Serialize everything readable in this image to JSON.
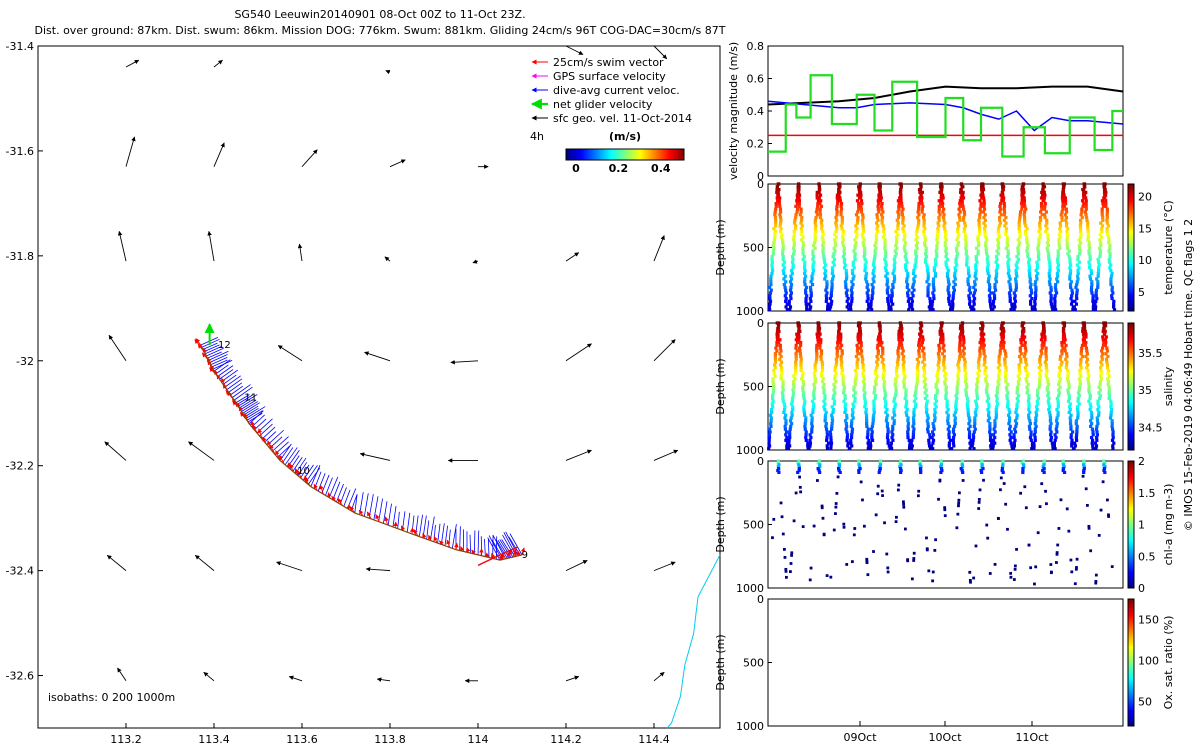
{
  "header": {
    "line1": "SG540 Leeuwin20140901 08-Oct 00Z to 11-Oct 23Z.",
    "line2": "Dist. over ground: 87km. Dist. swum: 86km. Mission DOG: 776km. Swum: 881km. Gliding 24cm/s 96T COG-DAC=30cm/s 87T"
  },
  "copyright": "© IMOS 15-Feb-2019 04:06:49 Hobart time. QC flags 1 2",
  "colors": {
    "swim": "#ff0000",
    "gps": "#ff00ff",
    "dac": "#0000ff",
    "net": "#00dd00",
    "geo": "#000000",
    "coast": "#00ccee"
  },
  "chart_data": [
    {
      "type": "scatter",
      "name": "map",
      "xlim": [
        113.0,
        114.55
      ],
      "ylim": [
        -32.7,
        -31.4
      ],
      "xticks": [
        113.2,
        113.4,
        113.6,
        113.8,
        114,
        114.2,
        114.4
      ],
      "xtick_labels": [
        "113.2",
        "113.4",
        "113.6",
        "113.8",
        "114",
        "114.2",
        "114.4"
      ],
      "yticks": [
        -31.4,
        -31.6,
        -31.8,
        -32,
        -32.2,
        -32.4,
        -32.6
      ],
      "ytick_labels": [
        "-31.4",
        "-31.6",
        "-31.8",
        "-32",
        "-32.2",
        "-32.4",
        "-32.6"
      ],
      "legend_position": "top-right",
      "legend": [
        {
          "label": "25cm/s swim vector",
          "color": "#ff0000"
        },
        {
          "label": "GPS surface velocity",
          "color": "#ff00ff"
        },
        {
          "label": "dive-avg current veloc.",
          "color": "#0000ff"
        },
        {
          "label": "net glider velocity",
          "color": "#00dd00"
        },
        {
          "label": "sfc geo. vel. 11-Oct-2014",
          "color": "#000000"
        }
      ],
      "colorbar": {
        "title": "(m/s)",
        "prefix": "4h",
        "ticks": [
          0,
          0.2,
          0.4
        ],
        "tick_labels": [
          "0",
          "0.2",
          "0.4"
        ],
        "range": [
          0,
          0.5
        ]
      },
      "isobaths_label": "isobaths: 0   200   1000m",
      "track": {
        "lon": [
          113.37,
          113.4,
          113.45,
          113.48,
          113.55,
          113.62,
          113.72,
          113.85,
          113.95,
          114.05,
          114.1
        ],
        "lat": [
          -31.97,
          -32.02,
          -32.08,
          -32.12,
          -32.19,
          -32.24,
          -32.29,
          -32.33,
          -32.36,
          -32.38,
          -32.37
        ]
      },
      "day_labels": [
        {
          "text": "12",
          "lon": 113.4,
          "lat": -31.97
        },
        {
          "text": "11",
          "lon": 113.46,
          "lat": -32.07
        },
        {
          "text": "10",
          "lon": 113.58,
          "lat": -32.21
        },
        {
          "text": "9",
          "lon": 114.09,
          "lat": -32.37
        }
      ],
      "geo_vectors": [
        {
          "lon": 113.2,
          "lat": -31.44,
          "u": 0.15,
          "v": 0.08
        },
        {
          "lon": 113.4,
          "lat": -31.44,
          "u": 0.1,
          "v": 0.08
        },
        {
          "lon": 113.8,
          "lat": -31.45,
          "u": -0.05,
          "v": 0.02
        },
        {
          "lon": 114.2,
          "lat": -31.4,
          "u": 0.2,
          "v": -0.1
        },
        {
          "lon": 114.4,
          "lat": -31.4,
          "u": 0.15,
          "v": -0.15
        },
        {
          "lon": 113.2,
          "lat": -31.63,
          "u": 0.1,
          "v": 0.35
        },
        {
          "lon": 113.4,
          "lat": -31.63,
          "u": 0.12,
          "v": 0.28
        },
        {
          "lon": 113.6,
          "lat": -31.63,
          "u": 0.18,
          "v": 0.2
        },
        {
          "lon": 113.8,
          "lat": -31.63,
          "u": 0.18,
          "v": 0.08
        },
        {
          "lon": 114.0,
          "lat": -31.63,
          "u": 0.12,
          "v": 0.0
        },
        {
          "lon": 113.2,
          "lat": -31.81,
          "u": -0.08,
          "v": 0.35
        },
        {
          "lon": 113.4,
          "lat": -31.81,
          "u": -0.06,
          "v": 0.35
        },
        {
          "lon": 113.6,
          "lat": -31.81,
          "u": -0.03,
          "v": 0.2
        },
        {
          "lon": 113.8,
          "lat": -31.81,
          "u": -0.06,
          "v": 0.05
        },
        {
          "lon": 114.0,
          "lat": -31.81,
          "u": -0.06,
          "v": -0.02
        },
        {
          "lon": 114.2,
          "lat": -31.81,
          "u": 0.15,
          "v": 0.1
        },
        {
          "lon": 114.4,
          "lat": -31.81,
          "u": 0.12,
          "v": 0.3
        },
        {
          "lon": 113.2,
          "lat": -32.0,
          "u": -0.2,
          "v": 0.3
        },
        {
          "lon": 113.6,
          "lat": -32.0,
          "u": -0.28,
          "v": 0.18
        },
        {
          "lon": 113.8,
          "lat": -32.0,
          "u": -0.3,
          "v": 0.1
        },
        {
          "lon": 114.0,
          "lat": -32.0,
          "u": -0.32,
          "v": -0.02
        },
        {
          "lon": 114.2,
          "lat": -32.0,
          "u": 0.3,
          "v": 0.2
        },
        {
          "lon": 114.4,
          "lat": -32.0,
          "u": 0.25,
          "v": 0.25
        },
        {
          "lon": 113.2,
          "lat": -32.19,
          "u": -0.25,
          "v": 0.22
        },
        {
          "lon": 113.4,
          "lat": -32.19,
          "u": -0.3,
          "v": 0.22
        },
        {
          "lon": 113.8,
          "lat": -32.19,
          "u": -0.35,
          "v": 0.08
        },
        {
          "lon": 114.0,
          "lat": -32.19,
          "u": -0.35,
          "v": 0.0
        },
        {
          "lon": 114.2,
          "lat": -32.19,
          "u": 0.3,
          "v": 0.12
        },
        {
          "lon": 114.4,
          "lat": -32.19,
          "u": 0.28,
          "v": 0.12
        },
        {
          "lon": 113.2,
          "lat": -32.4,
          "u": -0.22,
          "v": 0.18
        },
        {
          "lon": 113.4,
          "lat": -32.4,
          "u": -0.22,
          "v": 0.18
        },
        {
          "lon": 113.6,
          "lat": -32.4,
          "u": -0.3,
          "v": 0.1
        },
        {
          "lon": 113.8,
          "lat": -32.4,
          "u": -0.28,
          "v": 0.02
        },
        {
          "lon": 114.2,
          "lat": -32.4,
          "u": 0.25,
          "v": 0.12
        },
        {
          "lon": 114.4,
          "lat": -32.4,
          "u": 0.25,
          "v": 0.1
        },
        {
          "lon": 113.2,
          "lat": -32.61,
          "u": -0.1,
          "v": 0.15
        },
        {
          "lon": 113.4,
          "lat": -32.61,
          "u": -0.12,
          "v": 0.1
        },
        {
          "lon": 113.6,
          "lat": -32.61,
          "u": -0.15,
          "v": 0.05
        },
        {
          "lon": 113.8,
          "lat": -32.61,
          "u": -0.15,
          "v": 0.02
        },
        {
          "lon": 114.0,
          "lat": -32.61,
          "u": -0.15,
          "v": 0.0
        },
        {
          "lon": 114.2,
          "lat": -32.61,
          "u": 0.15,
          "v": 0.05
        },
        {
          "lon": 114.4,
          "lat": -32.61,
          "u": 0.12,
          "v": 0.1
        }
      ]
    },
    {
      "type": "line",
      "name": "velocity",
      "ylabel": "velocity magnitude (m/s)",
      "ylim": [
        0,
        0.8
      ],
      "yticks": [
        0,
        0.2,
        0.4,
        0.6,
        0.8
      ],
      "ytick_labels": [
        "0",
        "0.2",
        "0.4",
        "0.6",
        "0.8"
      ],
      "xlim": [
        0,
        1
      ],
      "series": [
        {
          "color": "#000000",
          "x": [
            0,
            0.1,
            0.2,
            0.3,
            0.4,
            0.5,
            0.6,
            0.7,
            0.8,
            0.9,
            1.0
          ],
          "y": [
            0.44,
            0.45,
            0.46,
            0.48,
            0.52,
            0.55,
            0.54,
            0.54,
            0.55,
            0.55,
            0.52
          ]
        },
        {
          "color": "#0000ff",
          "x": [
            0,
            0.1,
            0.2,
            0.25,
            0.3,
            0.4,
            0.5,
            0.55,
            0.6,
            0.65,
            0.7,
            0.75,
            0.8,
            0.85,
            0.9,
            1.0
          ],
          "y": [
            0.46,
            0.44,
            0.42,
            0.42,
            0.44,
            0.45,
            0.44,
            0.42,
            0.38,
            0.35,
            0.4,
            0.28,
            0.36,
            0.34,
            0.34,
            0.32
          ]
        },
        {
          "color": "#ff0000",
          "x": [
            0,
            1.0
          ],
          "y": [
            0.25,
            0.25
          ]
        },
        {
          "color": "#22dd22",
          "x": [
            0,
            0.05,
            0.05,
            0.08,
            0.08,
            0.12,
            0.12,
            0.18,
            0.18,
            0.25,
            0.25,
            0.3,
            0.3,
            0.35,
            0.35,
            0.42,
            0.42,
            0.5,
            0.5,
            0.55,
            0.55,
            0.6,
            0.6,
            0.66,
            0.66,
            0.72,
            0.72,
            0.78,
            0.78,
            0.85,
            0.85,
            0.92,
            0.92,
            0.97,
            0.97,
            1.0
          ],
          "y": [
            0.15,
            0.15,
            0.44,
            0.44,
            0.36,
            0.36,
            0.62,
            0.62,
            0.32,
            0.32,
            0.5,
            0.5,
            0.28,
            0.28,
            0.58,
            0.58,
            0.24,
            0.24,
            0.48,
            0.48,
            0.22,
            0.22,
            0.42,
            0.42,
            0.12,
            0.12,
            0.3,
            0.3,
            0.14,
            0.14,
            0.36,
            0.36,
            0.16,
            0.16,
            0.4,
            0.4
          ]
        }
      ]
    },
    {
      "type": "scatter",
      "name": "temperature",
      "ylabel": "Depth (m)",
      "clabel": "temperature (°C)",
      "ylim": [
        0,
        1000
      ],
      "yticks": [
        0,
        500,
        1000
      ],
      "ytick_labels": [
        "0",
        "500",
        "1000"
      ],
      "cticks": [
        5,
        10,
        15,
        20
      ],
      "ctick_labels": [
        "5",
        "10",
        "15",
        "20"
      ],
      "crange": [
        2,
        22
      ],
      "profiles": 17,
      "max_depth": 1000
    },
    {
      "type": "scatter",
      "name": "salinity",
      "ylabel": "Depth (m)",
      "clabel": "salinity",
      "ylim": [
        0,
        1000
      ],
      "yticks": [
        0,
        500,
        1000
      ],
      "ytick_labels": [
        "0",
        "500",
        "1000"
      ],
      "cticks": [
        34.5,
        35,
        35.5
      ],
      "ctick_labels": [
        "34.5",
        "35",
        "35.5"
      ],
      "crange": [
        34.2,
        35.9
      ],
      "profiles": 17,
      "max_depth": 1000
    },
    {
      "type": "scatter",
      "name": "chl",
      "ylabel": "Depth (m)",
      "clabel": "chl-a (mg m-3)",
      "ylim": [
        0,
        1000
      ],
      "yticks": [
        0,
        500,
        1000
      ],
      "ytick_labels": [
        "0",
        "500",
        "1000"
      ],
      "cticks": [
        0,
        0.5,
        1,
        1.5,
        2
      ],
      "ctick_labels": [
        "0",
        "0.5",
        "1",
        "1.5",
        "2"
      ],
      "crange": [
        0,
        2
      ],
      "profiles": 17
    },
    {
      "type": "scatter",
      "name": "oxygen",
      "ylabel": "Depth (m)",
      "clabel": "Ox. sat. ratio (%)",
      "ylim": [
        0,
        1000
      ],
      "yticks": [
        0,
        500,
        1000
      ],
      "ytick_labels": [
        "0",
        "500",
        "1000"
      ],
      "cticks": [
        50,
        100,
        150
      ],
      "ctick_labels": [
        "50",
        "100",
        "150"
      ],
      "crange": [
        20,
        175
      ],
      "time_ticks": [
        "09Oct",
        "10Oct",
        "11Oct"
      ]
    }
  ]
}
